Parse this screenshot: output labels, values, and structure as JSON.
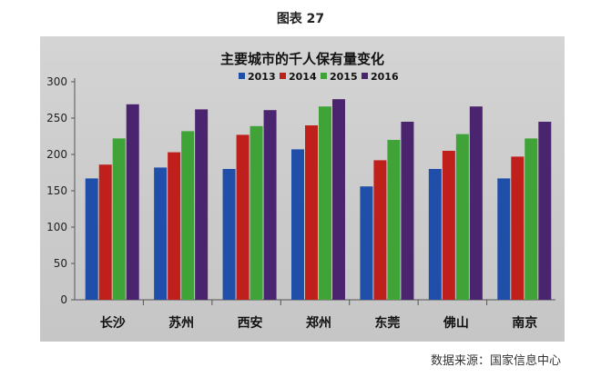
{
  "figure_label": "图表 27",
  "source": "数据来源：国家信息中心",
  "colors": {
    "2013": "#1f4fa8",
    "2014": "#c0201c",
    "2015": "#3fa338",
    "2016": "#4b2470"
  },
  "chart_data": {
    "type": "bar",
    "title": "主要城市的千人保有量变化",
    "categories": [
      "长沙",
      "苏州",
      "西安",
      "郑州",
      "东莞",
      "佛山",
      "南京"
    ],
    "series": [
      {
        "name": "2013",
        "values": [
          167,
          182,
          180,
          207,
          156,
          180,
          167
        ]
      },
      {
        "name": "2014",
        "values": [
          186,
          203,
          227,
          240,
          192,
          205,
          197
        ]
      },
      {
        "name": "2015",
        "values": [
          222,
          232,
          239,
          266,
          220,
          228,
          222
        ]
      },
      {
        "name": "2016",
        "values": [
          269,
          262,
          261,
          276,
          245,
          266,
          245
        ]
      }
    ],
    "ylim": [
      0,
      300
    ],
    "yticks": [
      0,
      50,
      100,
      150,
      200,
      250,
      300
    ],
    "grid": false,
    "legend": "top-center"
  }
}
